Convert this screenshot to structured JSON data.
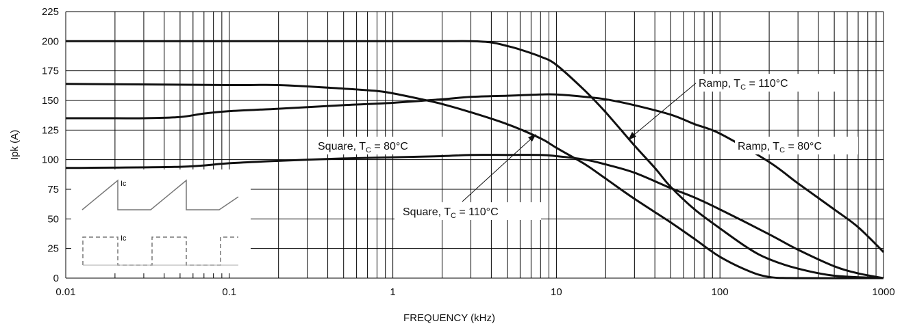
{
  "chart_data": {
    "type": "line",
    "title": "",
    "xlabel": "FREQUENCY (kHz)",
    "ylabel": "Ipk (A)",
    "x_scale": "log",
    "xlim": [
      0.01,
      1000
    ],
    "ylim": [
      0,
      225
    ],
    "grid": true,
    "x_ticks": [
      "0.01",
      "0.1",
      "1",
      "10",
      "100",
      "1000"
    ],
    "y_ticks": [
      "0",
      "25",
      "50",
      "75",
      "100",
      "125",
      "150",
      "175",
      "200",
      "225"
    ],
    "series": [
      {
        "name": "Square, TC = 80°C",
        "x": [
          0.01,
          0.1,
          1,
          2,
          3,
          4,
          5,
          6,
          8,
          10,
          15,
          20,
          30,
          40,
          50,
          70,
          100,
          150,
          200,
          300,
          500,
          1000
        ],
        "y": [
          200,
          200,
          200,
          200,
          200,
          199,
          196,
          193,
          187,
          180,
          158,
          140,
          112,
          93,
          77,
          58,
          42,
          25,
          16,
          8,
          2,
          0
        ]
      },
      {
        "name": "Square, TC = 110°C",
        "x": [
          0.01,
          0.1,
          0.2,
          0.5,
          0.8,
          1,
          1.5,
          2,
          3,
          5,
          8,
          10,
          15,
          20,
          30,
          50,
          70,
          100,
          150,
          200,
          300,
          1000
        ],
        "y": [
          164,
          163,
          163,
          160,
          158,
          156,
          151,
          147,
          140,
          130,
          118,
          110,
          96,
          84,
          67,
          47,
          33,
          18,
          6,
          1,
          0,
          0
        ]
      },
      {
        "name": "Ramp, TC = 80°C",
        "x": [
          0.01,
          0.02,
          0.03,
          0.05,
          0.07,
          0.1,
          0.2,
          0.5,
          1,
          2,
          3,
          5,
          8,
          10,
          15,
          20,
          30,
          50,
          70,
          100,
          200,
          300,
          500,
          700,
          1000
        ],
        "y": [
          135,
          135,
          135,
          136,
          139,
          141,
          143,
          146,
          148,
          151,
          153,
          154,
          155,
          155,
          153,
          151,
          146,
          138,
          130,
          122,
          98,
          80,
          58,
          43,
          22
        ]
      },
      {
        "name": "Ramp, TC = 110°C",
        "x": [
          0.01,
          0.05,
          0.1,
          0.2,
          0.5,
          1,
          2,
          3,
          5,
          8,
          10,
          15,
          20,
          30,
          50,
          70,
          100,
          200,
          300,
          500,
          700,
          1000
        ],
        "y": [
          93,
          94,
          97,
          99,
          101,
          102,
          103,
          104,
          104,
          104,
          103,
          100,
          96,
          89,
          76,
          68,
          58,
          37,
          24,
          10,
          4,
          0
        ]
      }
    ],
    "annotations": [
      {
        "main": "Square, T",
        "sub": "C",
        "tail": " = 80°C"
      },
      {
        "main": "Square, T",
        "sub": "C",
        "tail": " = 110°C"
      },
      {
        "main": "Ramp, T",
        "sub": "C",
        "tail": " = 110°C"
      },
      {
        "main": "Ramp, T",
        "sub": "C",
        "tail": " = 80°C"
      }
    ],
    "inset": {
      "ramp_label": "Ic",
      "square_label": "Ic"
    }
  }
}
